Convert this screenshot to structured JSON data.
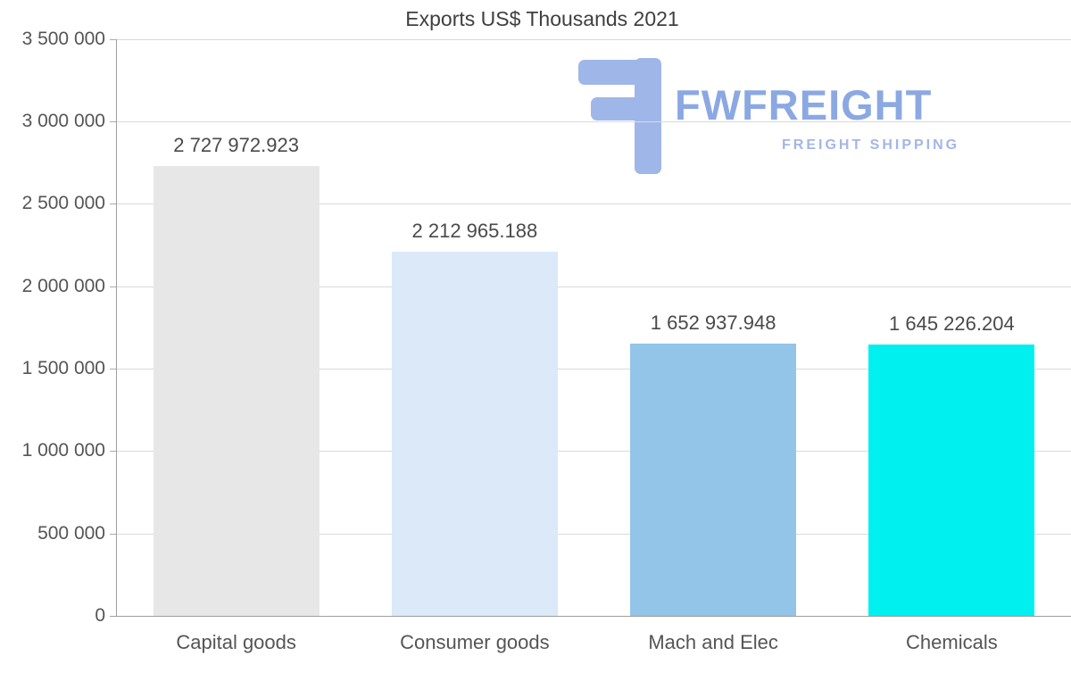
{
  "chart_data": {
    "type": "bar",
    "title": "Exports US$ Thousands 2021",
    "categories": [
      "Capital goods",
      "Consumer goods",
      "Mach and Elec",
      "Chemicals"
    ],
    "values": [
      2727972.923,
      2212965.188,
      1652937.948,
      1645226.204
    ],
    "value_labels": [
      "2 727 972.923",
      "2 212 965.188",
      "1 652 937.948",
      "1 645 226.204"
    ],
    "bar_colors": [
      "#e7e7e7",
      "#dbe9f8",
      "#92c5e8",
      "#00f0f0"
    ],
    "ylim": [
      0,
      3500000
    ],
    "yticks": [
      "3 500 000",
      "3 000 000",
      "2 500 000",
      "2 000 000",
      "1 500 000",
      "1 000 000",
      "500 000",
      "0"
    ],
    "grid": true,
    "legend": false,
    "xlabel": "",
    "ylabel": ""
  },
  "watermark": {
    "brand": "FWFREIGHT",
    "tagline": "FREIGHT SHIPPING",
    "color": "#9fb6e8"
  }
}
